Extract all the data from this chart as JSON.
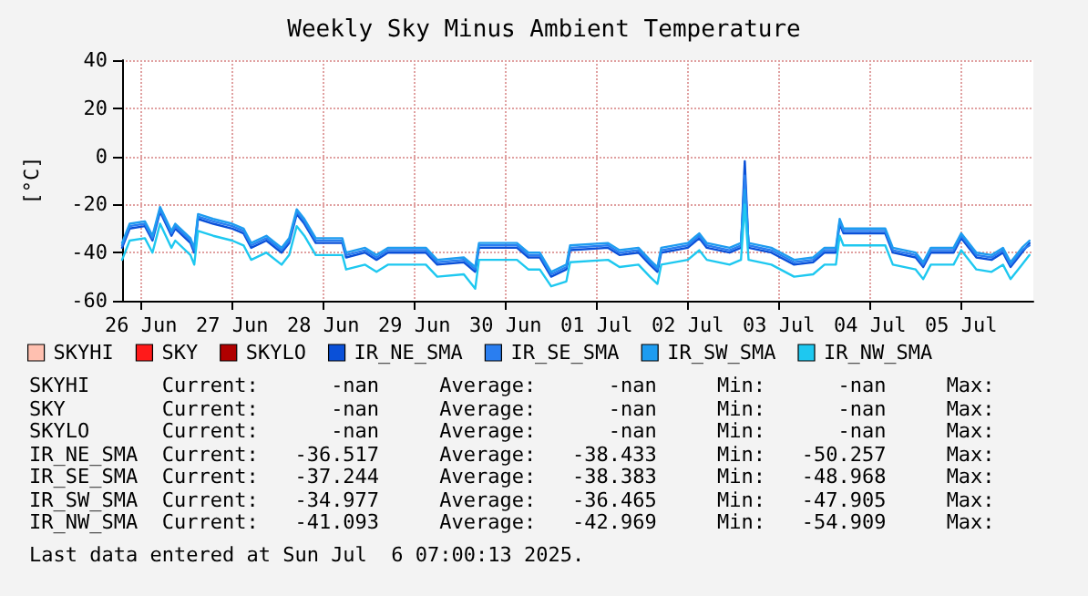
{
  "chart_data": {
    "type": "line",
    "title": "Weekly Sky Minus Ambient Temperature",
    "ylabel": "[°C]",
    "x": [
      "2025-06-26T07:00",
      "2025-06-26T09:00",
      "2025-06-26T13:00",
      "2025-06-26T15:00",
      "2025-06-26T17:00",
      "2025-06-26T20:00",
      "2025-06-26T21:00",
      "2025-06-27T01:00",
      "2025-06-27T02:00",
      "2025-06-27T03:00",
      "2025-06-27T07:00",
      "2025-06-27T12:00",
      "2025-06-27T15:00",
      "2025-06-27T17:00",
      "2025-06-27T21:00",
      "2025-06-28T01:00",
      "2025-06-28T03:00",
      "2025-06-28T05:00",
      "2025-06-28T07:00",
      "2025-06-28T10:00",
      "2025-06-28T17:00",
      "2025-06-28T18:00",
      "2025-06-28T23:00",
      "2025-06-29T02:00",
      "2025-06-29T05:00",
      "2025-06-29T15:00",
      "2025-06-29T18:00",
      "2025-06-30T01:00",
      "2025-06-30T04:00",
      "2025-06-30T05:00",
      "2025-06-30T15:00",
      "2025-06-30T18:00",
      "2025-06-30T21:00",
      "2025-07-01T00:00",
      "2025-07-01T04:00",
      "2025-07-01T05:00",
      "2025-07-01T15:00",
      "2025-07-01T18:00",
      "2025-07-01T23:00",
      "2025-07-02T02:00",
      "2025-07-02T04:00",
      "2025-07-02T05:00",
      "2025-07-02T12:00",
      "2025-07-02T15:00",
      "2025-07-02T17:00",
      "2025-07-02T23:00",
      "2025-07-03T02:00",
      "2025-07-03T03:00",
      "2025-07-03T04:00",
      "2025-07-03T10:00",
      "2025-07-03T16:00",
      "2025-07-03T21:00",
      "2025-07-04T00:00",
      "2025-07-04T03:00",
      "2025-07-04T04:00",
      "2025-07-04T05:00",
      "2025-07-04T16:00",
      "2025-07-04T18:00",
      "2025-07-05T00:00",
      "2025-07-05T02:00",
      "2025-07-05T04:00",
      "2025-07-05T10:00",
      "2025-07-05T12:00",
      "2025-07-05T16:00",
      "2025-07-05T20:00",
      "2025-07-05T23:00",
      "2025-07-06T01:00",
      "2025-07-06T04:00",
      "2025-07-06T06:00"
    ],
    "series": [
      {
        "name": "SKYHI",
        "color": "#ffc0b0",
        "values": [
          null,
          null,
          null,
          null,
          null,
          null,
          null,
          null,
          null,
          null,
          null,
          null,
          null,
          null,
          null,
          null,
          null,
          null,
          null,
          null,
          null,
          null,
          null,
          null,
          null,
          null,
          null,
          null,
          null,
          null,
          null,
          null,
          null,
          null,
          null,
          null,
          null,
          null,
          null,
          null,
          null,
          null,
          null,
          null,
          null,
          null,
          null,
          null,
          null,
          null,
          null,
          null,
          null,
          null,
          null,
          null,
          null,
          null,
          null,
          null,
          null,
          null,
          null,
          null,
          null,
          null,
          null,
          null,
          null
        ]
      },
      {
        "name": "SKY",
        "color": "#ff1a1a",
        "values": [
          null,
          null,
          null,
          null,
          null,
          null,
          null,
          null,
          null,
          null,
          null,
          null,
          null,
          null,
          null,
          null,
          null,
          null,
          null,
          null,
          null,
          null,
          null,
          null,
          null,
          null,
          null,
          null,
          null,
          null,
          null,
          null,
          null,
          null,
          null,
          null,
          null,
          null,
          null,
          null,
          null,
          null,
          null,
          null,
          null,
          null,
          null,
          null,
          null,
          null,
          null,
          null,
          null,
          null,
          null,
          null,
          null,
          null,
          null,
          null,
          null,
          null,
          null,
          null,
          null,
          null,
          null,
          null,
          null
        ]
      },
      {
        "name": "SKYLO",
        "color": "#b00000",
        "values": [
          null,
          null,
          null,
          null,
          null,
          null,
          null,
          null,
          null,
          null,
          null,
          null,
          null,
          null,
          null,
          null,
          null,
          null,
          null,
          null,
          null,
          null,
          null,
          null,
          null,
          null,
          null,
          null,
          null,
          null,
          null,
          null,
          null,
          null,
          null,
          null,
          null,
          null,
          null,
          null,
          null,
          null,
          null,
          null,
          null,
          null,
          null,
          null,
          null,
          null,
          null,
          null,
          null,
          null,
          null,
          null,
          null,
          null,
          null,
          null,
          null,
          null,
          null,
          null,
          null,
          null,
          null,
          null,
          null
        ]
      },
      {
        "name": "IR_NE_SMA",
        "color": "#0a50d8",
        "values": [
          -38,
          -30,
          -29,
          -35,
          -23,
          -33,
          -30,
          -36,
          -40,
          -26,
          -28,
          -30,
          -32,
          -38,
          -35,
          -40,
          -36,
          -24,
          -28,
          -36,
          -36,
          -42,
          -40,
          -43,
          -40,
          -40,
          -45,
          -44,
          -48,
          -38,
          -38,
          -42,
          -42,
          -50,
          -47,
          -39,
          -38,
          -41,
          -40,
          -45,
          -48,
          -40,
          -38,
          -34,
          -38,
          -40,
          -38,
          -2,
          -38,
          -40,
          -45,
          -44,
          -40,
          -40,
          -28,
          -32,
          -32,
          -40,
          -42,
          -46,
          -40,
          -40,
          -34,
          -42,
          -43,
          -40,
          -46,
          -40,
          -36
        ]
      },
      {
        "name": "IR_SE_SMA",
        "color": "#2a7ef0",
        "values": [
          -37,
          -29,
          -28,
          -34,
          -22,
          -32,
          -29,
          -35,
          -39,
          -25,
          -27,
          -29,
          -31,
          -37,
          -34,
          -39,
          -35,
          -23,
          -27,
          -35,
          -35,
          -41,
          -39,
          -42,
          -39,
          -39,
          -44,
          -43,
          -47,
          -37,
          -37,
          -41,
          -41,
          -49,
          -46,
          -38,
          -37,
          -40,
          -39,
          -44,
          -47,
          -39,
          -37,
          -33,
          -37,
          -39,
          -37,
          -8,
          -37,
          -39,
          -44,
          -43,
          -39,
          -39,
          -27,
          -31,
          -31,
          -39,
          -41,
          -45,
          -39,
          -39,
          -33,
          -41,
          -42,
          -39,
          -45,
          -39,
          -37
        ]
      },
      {
        "name": "IR_SW_SMA",
        "color": "#1e9cf0",
        "values": [
          -36,
          -28,
          -27,
          -33,
          -21,
          -31,
          -28,
          -34,
          -38,
          -24,
          -26,
          -28,
          -30,
          -36,
          -33,
          -38,
          -34,
          -22,
          -26,
          -34,
          -34,
          -40,
          -38,
          -41,
          -38,
          -38,
          -43,
          -42,
          -46,
          -36,
          -36,
          -40,
          -40,
          -48,
          -45,
          -37,
          -36,
          -39,
          -38,
          -43,
          -46,
          -38,
          -36,
          -32,
          -36,
          -38,
          -36,
          -14,
          -36,
          -38,
          -43,
          -42,
          -38,
          -38,
          -26,
          -30,
          -30,
          -38,
          -40,
          -44,
          -38,
          -38,
          -32,
          -40,
          -41,
          -38,
          -44,
          -38,
          -35
        ]
      },
      {
        "name": "IR_NW_SMA",
        "color": "#1ec8f0",
        "values": [
          -43,
          -35,
          -34,
          -40,
          -28,
          -38,
          -35,
          -41,
          -45,
          -31,
          -33,
          -35,
          -37,
          -43,
          -40,
          -45,
          -41,
          -29,
          -33,
          -41,
          -41,
          -47,
          -45,
          -48,
          -45,
          -45,
          -50,
          -49,
          -55,
          -43,
          -43,
          -47,
          -47,
          -54,
          -52,
          -44,
          -43,
          -46,
          -45,
          -50,
          -53,
          -45,
          -43,
          -39,
          -43,
          -45,
          -43,
          -20,
          -43,
          -45,
          -50,
          -49,
          -45,
          -45,
          -33,
          -37,
          -37,
          -45,
          -47,
          -51,
          -45,
          -45,
          -39,
          -47,
          -48,
          -45,
          -51,
          -45,
          -41
        ]
      }
    ],
    "xlim": [
      "2025-06-26T07:00",
      "2025-07-06T07:00"
    ],
    "xticks": [
      {
        "value": "2025-06-26T12:00",
        "label": "26 Jun"
      },
      {
        "value": "2025-06-27T12:00",
        "label": "27 Jun"
      },
      {
        "value": "2025-06-28T12:00",
        "label": "28 Jun"
      },
      {
        "value": "2025-06-29T12:00",
        "label": "29 Jun"
      },
      {
        "value": "2025-06-30T12:00",
        "label": "30 Jun"
      },
      {
        "value": "2025-07-01T12:00",
        "label": "01 Jul"
      },
      {
        "value": "2025-07-02T12:00",
        "label": "02 Jul"
      },
      {
        "value": "2025-07-03T12:00",
        "label": "03 Jul"
      },
      {
        "value": "2025-07-04T12:00",
        "label": "04 Jul"
      },
      {
        "value": "2025-07-05T12:00",
        "label": "05 Jul"
      }
    ],
    "ylim": [
      -60,
      40
    ],
    "yticks": [
      -60,
      -40,
      -20,
      0,
      20,
      40
    ],
    "grid": true,
    "legend": "bottom",
    "marker": "none",
    "line_style": "solid",
    "annotations": [
      "SKYHI      Current:      -nan     Average:      -nan     Min:      -nan     Max:",
      "SKY        Current:      -nan     Average:      -nan     Min:      -nan     Max:",
      "SKYLO      Current:      -nan     Average:      -nan     Min:      -nan     Max:",
      "IR_NE_SMA  Current:   -36.517     Average:   -38.433     Min:   -50.257     Max:",
      "IR_SE_SMA  Current:   -37.244     Average:   -38.383     Min:   -48.968     Max:",
      "IR_SW_SMA  Current:   -34.977     Average:   -36.465     Min:   -47.905     Max:",
      "IR_NW_SMA  Current:   -41.093     Average:   -42.969     Min:   -54.909     Max:",
      "Last data entered at Sun Jul  6 07:00:13 2025."
    ]
  }
}
